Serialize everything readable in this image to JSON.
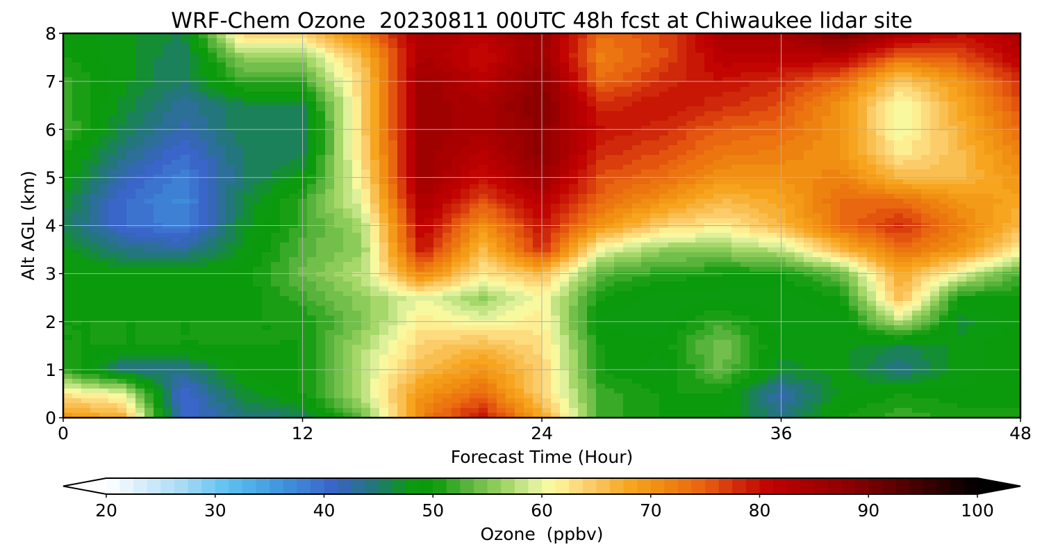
{
  "chart_data": {
    "type": "heatmap",
    "title": "WRF-Chem Ozone  20230811 00UTC 48h fcst at Chiwaukee lidar site",
    "xlabel": "Forecast Time (Hour)",
    "ylabel": "Alt AGL (km)",
    "xlim": [
      0,
      48
    ],
    "ylim": [
      0,
      8
    ],
    "x_ticks": [
      "0",
      "12",
      "24",
      "36",
      "48"
    ],
    "y_ticks": [
      "0",
      "1",
      "2",
      "3",
      "4",
      "5",
      "6",
      "7",
      "8"
    ],
    "grid": true,
    "x": [
      0,
      3,
      6,
      9,
      12,
      15,
      18,
      21,
      24,
      27,
      30,
      33,
      36,
      39,
      42,
      45,
      48
    ],
    "y": [
      0,
      0.5,
      1,
      1.5,
      2,
      2.5,
      3,
      3.5,
      4,
      4.5,
      5,
      5.5,
      6,
      6.5,
      7,
      7.5,
      8
    ],
    "z_unit": "ppbv",
    "z": [
      [
        70,
        67,
        40,
        44,
        45,
        54,
        72,
        80,
        68,
        52,
        50,
        49,
        44,
        50,
        52,
        51,
        50
      ],
      [
        62,
        60,
        40,
        47,
        50,
        58,
        70,
        74,
        64,
        52,
        50,
        50,
        42,
        48,
        50,
        49,
        50
      ],
      [
        52,
        44,
        44,
        49,
        50,
        58,
        66,
        70,
        64,
        50,
        48,
        54,
        47,
        48,
        44,
        48,
        50
      ],
      [
        50,
        50,
        50,
        50,
        50,
        57,
        64,
        66,
        63,
        50,
        49,
        55,
        48,
        48,
        46,
        48,
        50
      ],
      [
        50,
        50,
        50,
        50,
        50,
        55,
        62,
        60,
        62,
        48,
        48,
        52,
        48,
        48,
        58,
        47,
        49
      ],
      [
        49,
        49,
        49,
        49,
        52,
        56,
        60,
        56,
        61,
        50,
        48,
        48,
        48,
        50,
        66,
        50,
        50
      ],
      [
        49,
        49,
        49,
        49,
        54,
        58,
        72,
        62,
        66,
        53,
        51,
        50,
        50,
        54,
        68,
        60,
        52
      ],
      [
        48,
        44,
        43,
        48,
        53,
        56,
        80,
        66,
        78,
        60,
        56,
        56,
        58,
        66,
        74,
        70,
        62
      ],
      [
        46,
        40,
        38,
        47,
        52,
        57,
        82,
        70,
        80,
        70,
        64,
        62,
        66,
        74,
        78,
        72,
        66
      ],
      [
        47,
        40,
        37,
        46,
        52,
        60,
        84,
        76,
        82,
        74,
        70,
        66,
        68,
        74,
        74,
        70,
        68
      ],
      [
        49,
        42,
        38,
        45,
        48,
        62,
        86,
        80,
        86,
        76,
        74,
        70,
        70,
        72,
        66,
        66,
        70
      ],
      [
        50,
        44,
        40,
        45,
        46,
        63,
        86,
        82,
        88,
        78,
        76,
        73,
        72,
        70,
        62,
        66,
        72
      ],
      [
        53,
        46,
        42,
        46,
        45,
        64,
        86,
        84,
        88,
        80,
        78,
        75,
        74,
        70,
        60,
        67,
        74
      ],
      [
        52,
        47,
        43,
        46,
        46,
        64,
        86,
        84,
        89,
        78,
        80,
        78,
        76,
        70,
        60,
        68,
        76
      ],
      [
        52,
        48,
        45,
        52,
        52,
        64,
        86,
        82,
        88,
        74,
        78,
        80,
        78,
        74,
        64,
        70,
        78
      ],
      [
        50,
        48,
        45,
        56,
        56,
        66,
        84,
        80,
        86,
        72,
        76,
        82,
        82,
        82,
        74,
        76,
        82
      ],
      [
        50,
        48,
        46,
        64,
        64,
        72,
        84,
        82,
        86,
        74,
        76,
        84,
        84,
        90,
        84,
        80,
        84
      ]
    ],
    "colorbar": {
      "label": "Ozone  (ppbv)",
      "ticks": [
        "20",
        "30",
        "40",
        "50",
        "60",
        "70",
        "80",
        "90",
        "100"
      ],
      "min": 20,
      "max": 100,
      "step": 1.25,
      "extend": "both",
      "stops": [
        {
          "v": 20,
          "c": "#ffffff"
        },
        {
          "v": 27,
          "c": "#a8daf5"
        },
        {
          "v": 31,
          "c": "#5ec2f2"
        },
        {
          "v": 36,
          "c": "#3f96dd"
        },
        {
          "v": 41,
          "c": "#3a62c8"
        },
        {
          "v": 45,
          "c": "#1f7a6e"
        },
        {
          "v": 48,
          "c": "#0b9a10"
        },
        {
          "v": 50,
          "c": "#0a9a0a"
        },
        {
          "v": 53,
          "c": "#55b23a"
        },
        {
          "v": 57,
          "c": "#a8d86a"
        },
        {
          "v": 59,
          "c": "#d8ee9a"
        },
        {
          "v": 61,
          "c": "#fffaa0"
        },
        {
          "v": 64,
          "c": "#fbd070"
        },
        {
          "v": 68,
          "c": "#f7a520"
        },
        {
          "v": 71,
          "c": "#f08c10"
        },
        {
          "v": 75,
          "c": "#e86010"
        },
        {
          "v": 78,
          "c": "#d02a0a"
        },
        {
          "v": 81,
          "c": "#c00000"
        },
        {
          "v": 88,
          "c": "#8e0000"
        },
        {
          "v": 94,
          "c": "#4a0000"
        },
        {
          "v": 100,
          "c": "#000000"
        }
      ]
    }
  }
}
